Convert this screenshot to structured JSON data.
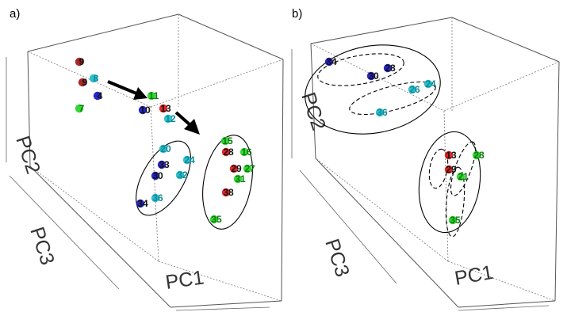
{
  "colors": {
    "red": "#e01010",
    "darkred": "#a01010",
    "blue": "#1010c0",
    "cyan": "#18b8c8",
    "green": "#20d020"
  },
  "chart_data": [
    {
      "type": "scatter",
      "panel_label": "a)",
      "xlabel": "PC1",
      "ylabel": "PC2",
      "zlabel": "PC3",
      "points": [
        {
          "label": "9",
          "group": "darkred"
        },
        {
          "label": "8",
          "group": "cyan"
        },
        {
          "label": "9",
          "group": "darkred"
        },
        {
          "label": "4",
          "group": "blue"
        },
        {
          "label": "7",
          "group": "green"
        },
        {
          "label": "11",
          "group": "green"
        },
        {
          "label": "10",
          "group": "blue"
        },
        {
          "label": "13",
          "group": "red"
        },
        {
          "label": "12",
          "group": "cyan"
        },
        {
          "label": "20",
          "group": "cyan"
        },
        {
          "label": "24",
          "group": "cyan"
        },
        {
          "label": "33",
          "group": "blue"
        },
        {
          "label": "30",
          "group": "blue"
        },
        {
          "label": "32",
          "group": "cyan"
        },
        {
          "label": "36",
          "group": "cyan"
        },
        {
          "label": "34",
          "group": "blue"
        },
        {
          "label": "15",
          "group": "green"
        },
        {
          "label": "28",
          "group": "red"
        },
        {
          "label": "16",
          "group": "green"
        },
        {
          "label": "29",
          "group": "red"
        },
        {
          "label": "27",
          "group": "green"
        },
        {
          "label": "31",
          "group": "green"
        },
        {
          "label": "38",
          "group": "red"
        },
        {
          "label": "35",
          "group": "green"
        }
      ]
    },
    {
      "type": "scatter",
      "panel_label": "b)",
      "xlabel": "PC1",
      "ylabel": "PC2",
      "zlabel": "PC3",
      "points": [
        {
          "label": "34",
          "group": "blue"
        },
        {
          "label": "30",
          "group": "blue"
        },
        {
          "label": "28",
          "group": "blue"
        },
        {
          "label": "26",
          "group": "cyan"
        },
        {
          "label": "24",
          "group": "cyan"
        },
        {
          "label": "36",
          "group": "cyan"
        },
        {
          "label": "13",
          "group": "red"
        },
        {
          "label": "29",
          "group": "red"
        },
        {
          "label": "28",
          "group": "green"
        },
        {
          "label": "21",
          "group": "green"
        },
        {
          "label": "35",
          "group": "green"
        }
      ]
    }
  ]
}
